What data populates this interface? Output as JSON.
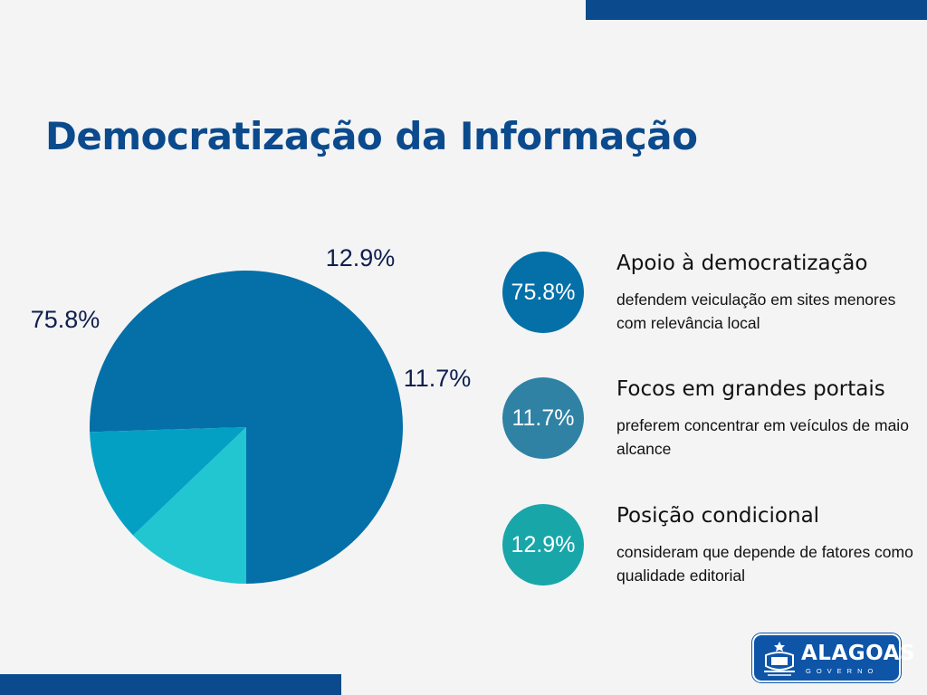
{
  "title": "Democratização da Informação",
  "colors": {
    "brand": "#0b4a8c",
    "slice_apoio": "#0470a7",
    "slice_focos": "#04a0c4",
    "slice_posicao": "#22c6d1",
    "circle_apoio": "#0470a7",
    "circle_focos": "#2f82a3",
    "circle_posicao": "#18a6a9"
  },
  "chart_data": {
    "type": "pie",
    "title": "Democratização da Informação",
    "slices": [
      {
        "name": "Apoio à democratização",
        "value": 75.8,
        "label": "75.8%"
      },
      {
        "name": "Posição condicional",
        "value": 12.9,
        "label": "12.9%"
      },
      {
        "name": "Focos em grandes portais",
        "value": 11.7,
        "label": "11.7%"
      }
    ]
  },
  "legend": [
    {
      "value": "75.8%",
      "heading": "Apoio à democratização",
      "desc": "defendem veiculação em sites menores com relevância local"
    },
    {
      "value": "11.7%",
      "heading": "Focos em grandes portais",
      "desc": "preferem concentrar em veículos de maio alcance"
    },
    {
      "value": "12.9%",
      "heading": "Posição condicional",
      "desc": "consideram que depende de fatores como qualidade editorial"
    }
  ],
  "logo": {
    "name": "ALAGOAS",
    "sub": "GOVERNO",
    "icon": "state-crest-icon"
  }
}
